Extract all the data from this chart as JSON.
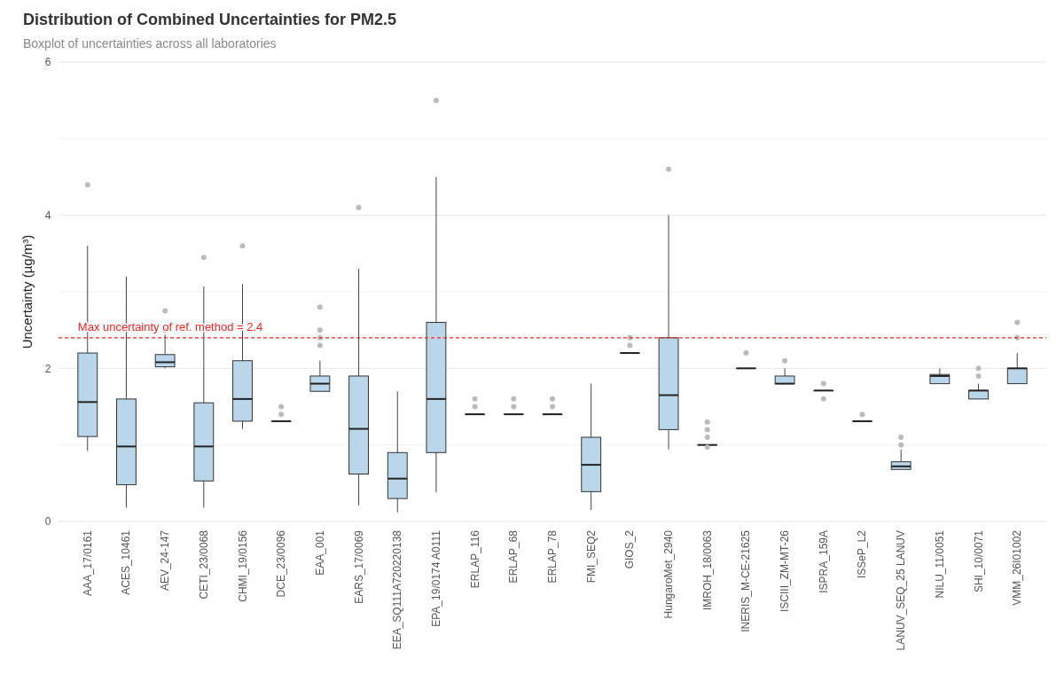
{
  "chart_data": {
    "type": "box",
    "title": "Distribution of Combined Uncertainties for PM2.5",
    "subtitle": "Boxplot of uncertainties across all laboratories",
    "ylabel": "Uncertainty (µg/m³)",
    "categories": [
      "AAA_17/0161",
      "ACES_10461",
      "AEV_24-147",
      "CETI_23/0068",
      "CHMI_19/0156",
      "DCE_23/0096",
      "EAA_001",
      "EARS_17/0069",
      "EEA_SQ111A720220138",
      "EPA_19/0174 A0111",
      "ERLAP_116",
      "ERLAP_68",
      "ERLAP_78",
      "FMI_SEQ2",
      "GIOS_2",
      "HungaroMet_2940",
      "IMROH_18/0063",
      "INERIS_M-CE-21625",
      "ISCIII_ZM-MT-26",
      "ISPRA_159A",
      "ISSeP_L2",
      "LANUV_SEQ_25 LANUV",
      "NILU_11/0051",
      "SHI_10/0071",
      "VMM_26I01002"
    ],
    "boxes": [
      {
        "low": 0.92,
        "q1": 1.11,
        "median": 1.56,
        "q3": 2.2,
        "high": 3.6,
        "outliers": [
          4.4
        ]
      },
      {
        "low": 0.18,
        "q1": 0.48,
        "median": 0.98,
        "q3": 1.6,
        "high": 3.2
      },
      {
        "low": 2.0,
        "q1": 2.02,
        "median": 2.08,
        "q3": 2.18,
        "high": 2.44,
        "outliers": [
          2.5,
          2.75
        ]
      },
      {
        "low": 0.18,
        "q1": 0.53,
        "median": 0.98,
        "q3": 1.55,
        "high": 3.07,
        "outliers": [
          3.45
        ]
      },
      {
        "low": 1.21,
        "q1": 1.31,
        "median": 1.6,
        "q3": 2.1,
        "high": 3.1,
        "outliers": [
          3.6
        ]
      },
      {
        "low": 1.31,
        "q1": 1.31,
        "median": 1.31,
        "q3": 1.31,
        "high": 1.31,
        "outliers": [
          1.4,
          1.5
        ]
      },
      {
        "low": 1.7,
        "q1": 1.7,
        "median": 1.8,
        "q3": 1.9,
        "high": 2.1,
        "outliers": [
          2.3,
          2.4,
          2.5,
          2.8
        ]
      },
      {
        "low": 0.21,
        "q1": 0.62,
        "median": 1.21,
        "q3": 1.9,
        "high": 3.3,
        "outliers": [
          4.1
        ]
      },
      {
        "low": 0.12,
        "q1": 0.3,
        "median": 0.56,
        "q3": 0.9,
        "high": 1.7
      },
      {
        "low": 0.38,
        "q1": 0.9,
        "median": 1.6,
        "q3": 2.6,
        "high": 4.5,
        "outliers": [
          5.5
        ]
      },
      {
        "low": 1.4,
        "q1": 1.4,
        "median": 1.4,
        "q3": 1.4,
        "high": 1.4,
        "outliers": [
          1.5,
          1.6
        ]
      },
      {
        "low": 1.4,
        "q1": 1.4,
        "median": 1.4,
        "q3": 1.4,
        "high": 1.4,
        "outliers": [
          1.5,
          1.6
        ]
      },
      {
        "low": 1.4,
        "q1": 1.4,
        "median": 1.4,
        "q3": 1.4,
        "high": 1.4,
        "outliers": [
          1.5,
          1.6
        ]
      },
      {
        "low": 0.15,
        "q1": 0.39,
        "median": 0.74,
        "q3": 1.1,
        "high": 1.8
      },
      {
        "low": 2.2,
        "q1": 2.2,
        "median": 2.2,
        "q3": 2.2,
        "high": 2.2,
        "outliers": [
          2.3,
          2.4
        ]
      },
      {
        "low": 0.94,
        "q1": 1.2,
        "median": 1.65,
        "q3": 2.4,
        "high": 4.0,
        "outliers": [
          4.6
        ]
      },
      {
        "low": 1.0,
        "q1": 1.0,
        "median": 1.0,
        "q3": 1.0,
        "high": 1.0,
        "outliers": [
          0.97,
          1.1,
          1.2,
          1.3
        ]
      },
      {
        "low": 2.0,
        "q1": 2.0,
        "median": 2.0,
        "q3": 2.0,
        "high": 2.0,
        "outliers": [
          2.2
        ]
      },
      {
        "low": 1.8,
        "q1": 1.8,
        "median": 1.8,
        "q3": 1.9,
        "high": 2.0,
        "outliers": [
          2.1
        ]
      },
      {
        "low": 1.71,
        "q1": 1.71,
        "median": 1.71,
        "q3": 1.71,
        "high": 1.71,
        "outliers": [
          1.6,
          1.8
        ]
      },
      {
        "low": 1.31,
        "q1": 1.31,
        "median": 1.31,
        "q3": 1.31,
        "high": 1.31,
        "outliers": [
          1.4
        ]
      },
      {
        "low": 0.68,
        "q1": 0.68,
        "median": 0.72,
        "q3": 0.78,
        "high": 0.94,
        "outliers": [
          1.0,
          1.1
        ]
      },
      {
        "low": 1.8,
        "q1": 1.8,
        "median": 1.9,
        "q3": 1.92,
        "high": 2.0
      },
      {
        "low": 1.6,
        "q1": 1.6,
        "median": 1.71,
        "q3": 1.71,
        "high": 1.8,
        "outliers": [
          1.9,
          2.0
        ]
      },
      {
        "low": 1.8,
        "q1": 1.8,
        "median": 2.0,
        "q3": 2.0,
        "high": 2.2,
        "outliers": [
          2.4,
          2.6
        ]
      }
    ],
    "color": "#b9d6ea",
    "ylim": [
      0,
      6
    ],
    "yticks": [
      0,
      {
        "value": 1,
        "label": null
      },
      2,
      {
        "value": 3,
        "label": null
      },
      4,
      {
        "value": 5,
        "label": null
      },
      6
    ],
    "grid": "y",
    "ref_lines": [
      {
        "axis": "y",
        "value": 2.4,
        "label": "Max uncertainty of ref. method = 2.4",
        "color": "#ff2020",
        "line_style": "dashed"
      }
    ]
  }
}
